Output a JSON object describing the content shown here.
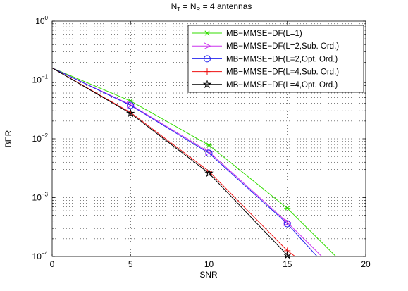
{
  "chart_data": {
    "type": "line",
    "title": {
      "main_a": "N",
      "sub_a": "T",
      "main_b": " = N",
      "sub_b": "R",
      "main_c": " = 4 antennas"
    },
    "xlabel": "SNR",
    "ylabel": "BER",
    "xlim": [
      0,
      20
    ],
    "ylim": [
      0.0001,
      1
    ],
    "yscale": "log",
    "grid": true,
    "legend_position": "top-right",
    "x_ticks": [
      "0",
      "5",
      "10",
      "15",
      "20"
    ],
    "y_ticks": [
      {
        "base": "10",
        "exp": "0"
      },
      {
        "base": "10",
        "exp": "−1"
      },
      {
        "base": "10",
        "exp": "−2"
      },
      {
        "base": "10",
        "exp": "−3"
      },
      {
        "base": "10",
        "exp": "−4"
      }
    ],
    "series": [
      {
        "name": "MB−MMSE−DF(L=1)",
        "color": "#33dd00",
        "marker": "asterisk",
        "x": [
          0,
          5,
          10,
          15,
          18.1
        ],
        "y": [
          0.16,
          0.044,
          0.0078,
          0.00066,
          0.0001
        ]
      },
      {
        "name": "MB−MMSE−DF(L=2,Sub. Ord.)",
        "color": "#cc33ee",
        "marker": "triangle-right",
        "x": [
          0,
          5,
          10,
          15,
          17.2
        ],
        "y": [
          0.16,
          0.038,
          0.006,
          0.00038,
          0.0001
        ]
      },
      {
        "name": "MB−MMSE−DF(L=2,Opt. Ord.)",
        "color": "#2222ee",
        "marker": "circle",
        "x": [
          0,
          5,
          10,
          15,
          16.9
        ],
        "y": [
          0.16,
          0.037,
          0.0057,
          0.00036,
          0.0001
        ]
      },
      {
        "name": "MB−MMSE−DF(L=4,Sub. Ord.)",
        "color": "#ee1111",
        "marker": "plus",
        "x": [
          0,
          5,
          10,
          15,
          15.5
        ],
        "y": [
          0.16,
          0.028,
          0.0028,
          0.000125,
          0.0001
        ]
      },
      {
        "name": "MB−MMSE−DF(L=4,Opt. Ord.)",
        "color": "#000000",
        "marker": "star",
        "x": [
          0,
          5,
          10,
          15,
          15.2
        ],
        "y": [
          0.16,
          0.027,
          0.0026,
          0.000105,
          0.0001
        ]
      }
    ]
  }
}
